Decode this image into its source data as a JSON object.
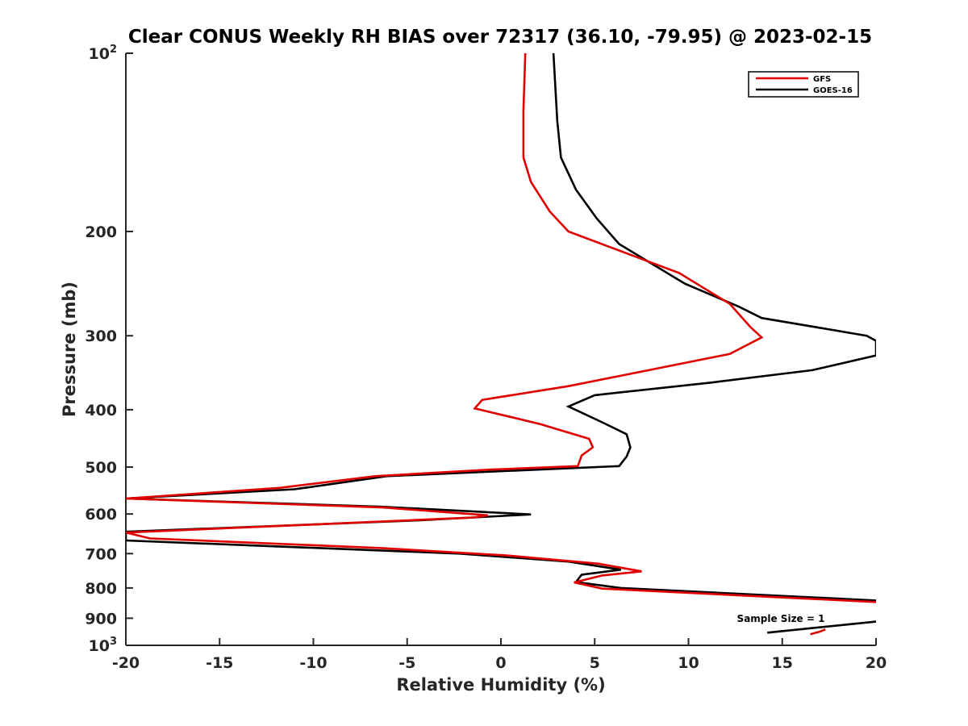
{
  "chart_data": {
    "type": "line",
    "title": "Clear CONUS Weekly RH BIAS over 72317 (36.10, -79.95) @ 2023-02-15",
    "xlabel": "Relative Humidity (%)",
    "ylabel": "Pressure (mb)",
    "xlim": [
      -20,
      20
    ],
    "ylim": [
      100,
      1000
    ],
    "y_scale": "log",
    "y_reversed": true,
    "grid": false,
    "legend_position": "top-right",
    "x_ticks": [
      -20,
      -15,
      -10,
      -5,
      0,
      5,
      10,
      15,
      20
    ],
    "x_tick_labels": [
      "-20",
      "-15",
      "-10",
      "-5",
      "0",
      "5",
      "10",
      "15",
      "20"
    ],
    "y_ticks": [
      100,
      200,
      300,
      400,
      500,
      600,
      700,
      800,
      900,
      1000
    ],
    "y_tick_labels": [
      {
        "base": "10",
        "exp": "2"
      },
      {
        "base": "200",
        "exp": ""
      },
      {
        "base": "300",
        "exp": ""
      },
      {
        "base": "400",
        "exp": ""
      },
      {
        "base": "500",
        "exp": ""
      },
      {
        "base": "600",
        "exp": ""
      },
      {
        "base": "700",
        "exp": ""
      },
      {
        "base": "800",
        "exp": ""
      },
      {
        "base": "900",
        "exp": ""
      },
      {
        "base": "10",
        "exp": "3"
      }
    ],
    "annotation": "Sample Size = 1",
    "series": [
      {
        "name": "GFS",
        "color": "#e00000",
        "points": [
          [
            1.3,
            100
          ],
          [
            1.2,
            125
          ],
          [
            1.2,
            150
          ],
          [
            1.6,
            165
          ],
          [
            2.6,
            185
          ],
          [
            3.6,
            200
          ],
          [
            9.5,
            235
          ],
          [
            12.2,
            265
          ],
          [
            13.3,
            290
          ],
          [
            13.9,
            302
          ],
          [
            12.2,
            322
          ],
          [
            3.6,
            365
          ],
          [
            -1.0,
            385
          ],
          [
            -1.4,
            398
          ],
          [
            2.1,
            423
          ],
          [
            4.7,
            448
          ],
          [
            4.9,
            463
          ],
          [
            4.3,
            478
          ],
          [
            4.1,
            498
          ],
          [
            -0.6,
            505
          ],
          [
            -6.7,
            518
          ],
          [
            -11.8,
            542
          ],
          [
            -20.0,
            565
          ],
          [
            -6.3,
            585
          ],
          [
            -0.7,
            603
          ],
          [
            -1.4,
            608
          ],
          [
            -10.0,
            625
          ],
          [
            -20.0,
            645
          ],
          [
            -18.7,
            660
          ],
          [
            -6.4,
            685
          ],
          [
            0.3,
            705
          ],
          [
            5.2,
            728
          ],
          [
            7.5,
            750
          ],
          [
            5.4,
            762
          ],
          [
            3.9,
            783
          ],
          [
            5.4,
            802
          ],
          [
            20.0,
            845
          ]
        ]
      },
      {
        "name": "GOES-16",
        "color": "#000000",
        "points": [
          [
            2.8,
            100
          ],
          [
            3.0,
            130
          ],
          [
            3.2,
            150
          ],
          [
            4.0,
            170
          ],
          [
            5.1,
            190
          ],
          [
            6.3,
            210
          ],
          [
            9.8,
            245
          ],
          [
            12.7,
            268
          ],
          [
            13.9,
            280
          ],
          [
            19.5,
            300
          ],
          [
            20.0,
            306
          ],
          [
            20.0,
            324
          ],
          [
            16.6,
            343
          ],
          [
            11.2,
            360
          ],
          [
            5.0,
            378
          ],
          [
            3.6,
            395
          ],
          [
            5.4,
            420
          ],
          [
            6.7,
            440
          ],
          [
            6.9,
            463
          ],
          [
            6.7,
            480
          ],
          [
            6.3,
            498
          ],
          [
            -6.1,
            518
          ],
          [
            -11.0,
            545
          ],
          [
            -20.0,
            565
          ],
          [
            -6.5,
            583
          ],
          [
            1.6,
            601
          ],
          [
            -4.3,
            615
          ],
          [
            -20.0,
            643
          ],
          [
            -20.0,
            665
          ],
          [
            -2.2,
            700
          ],
          [
            3.6,
            722
          ],
          [
            6.4,
            745
          ],
          [
            4.3,
            760
          ],
          [
            4.0,
            782
          ],
          [
            6.4,
            800
          ],
          [
            20.0,
            840
          ]
        ]
      }
    ],
    "sample_size_series": [
      {
        "name": "GFS",
        "color": "#e00000",
        "points": [
          [
            16.5,
            958
          ],
          [
            17.0,
            948
          ],
          [
            17.3,
            940
          ]
        ]
      },
      {
        "name": "GOES-16",
        "color": "#000000",
        "points": [
          [
            14.2,
            952
          ],
          [
            20.0,
            912
          ]
        ]
      }
    ]
  }
}
